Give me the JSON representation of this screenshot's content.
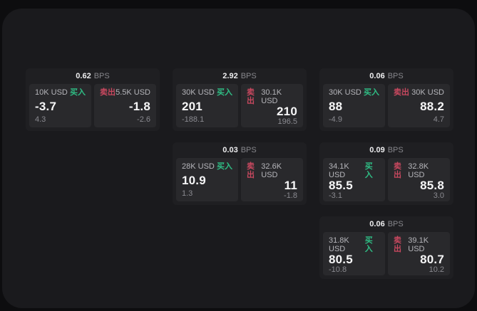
{
  "labels": {
    "buy": "买入",
    "sell": "卖出",
    "bps_unit": "BPS"
  },
  "colors": {
    "buy": "#2fbe85",
    "sell": "#c8485f",
    "background": "#0d0d0f",
    "panel": "#1a1a1d",
    "card": "#1f1f22",
    "tile": "#29292c"
  },
  "cards": [
    {
      "bps": "0.62",
      "buy": {
        "amount": "10K USD",
        "value": "-3.7",
        "delta": "4.3"
      },
      "sell": {
        "amount": "5.5K USD",
        "value": "-1.8",
        "delta": "-2.6"
      }
    },
    {
      "bps": "2.92",
      "buy": {
        "amount": "30K USD",
        "value": "201",
        "delta": "-188.1"
      },
      "sell": {
        "amount": "30.1K USD",
        "value": "210",
        "delta": "196.5"
      }
    },
    {
      "bps": "0.06",
      "buy": {
        "amount": "30K USD",
        "value": "88",
        "delta": "-4.9"
      },
      "sell": {
        "amount": "30K USD",
        "value": "88.2",
        "delta": "4.7"
      }
    },
    {
      "bps": "0.03",
      "buy": {
        "amount": "28K USD",
        "value": "10.9",
        "delta": "1.3"
      },
      "sell": {
        "amount": "32.6K USD",
        "value": "11",
        "delta": "-1.8"
      }
    },
    {
      "bps": "0.09",
      "buy": {
        "amount": "34.1K USD",
        "value": "85.5",
        "delta": "-3.1"
      },
      "sell": {
        "amount": "32.8K USD",
        "value": "85.8",
        "delta": "3.0"
      }
    },
    {
      "bps": "0.06",
      "buy": {
        "amount": "31.8K USD",
        "value": "80.5",
        "delta": "-10.8"
      },
      "sell": {
        "amount": "39.1K USD",
        "value": "80.7",
        "delta": "10.2"
      }
    }
  ]
}
